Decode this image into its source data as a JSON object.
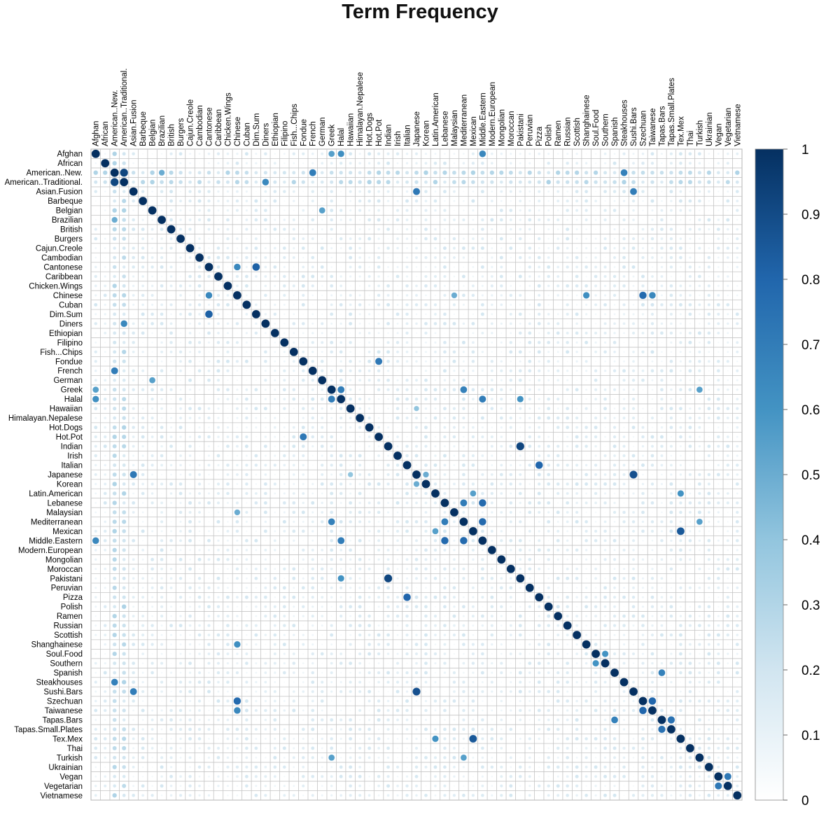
{
  "chart_data": {
    "type": "heatmap",
    "title": "Term Frequency",
    "labels": [
      "Afghan",
      "African",
      "American..New.",
      "American..Traditional.",
      "Asian.Fusion",
      "Barbeque",
      "Belgian",
      "Brazilian",
      "British",
      "Burgers",
      "Cajun.Creole",
      "Cambodian",
      "Cantonese",
      "Caribbean",
      "Chicken.Wings",
      "Chinese",
      "Cuban",
      "Dim.Sum",
      "Diners",
      "Ethiopian",
      "Filipino",
      "Fish...Chips",
      "Fondue",
      "French",
      "German",
      "Greek",
      "Halal",
      "Hawaiian",
      "Himalayan.Nepalese",
      "Hot.Dogs",
      "Hot.Pot",
      "Indian",
      "Irish",
      "Italian",
      "Japanese",
      "Korean",
      "Latin.American",
      "Lebanese",
      "Malaysian",
      "Mediterranean",
      "Mexican",
      "Middle.Eastern",
      "Modern.European",
      "Mongolian",
      "Moroccan",
      "Pakistani",
      "Peruvian",
      "Pizza",
      "Polish",
      "Ramen",
      "Russian",
      "Scottish",
      "Shanghainese",
      "Soul.Food",
      "Southern",
      "Spanish",
      "Steakhouses",
      "Sushi.Bars",
      "Szechuan",
      "Taiwanese",
      "Tapas.Bars",
      "Tapas.Small.Plates",
      "Tex.Mex",
      "Thai",
      "Turkish",
      "Ukrainian",
      "Vegan",
      "Vegetarian",
      "Vietnamese"
    ],
    "colorbar": {
      "range": [
        0,
        1
      ],
      "ticks": [
        "0",
        "0.1",
        "0.2",
        "0.3",
        "0.4",
        "0.5",
        "0.6",
        "0.7",
        "0.8",
        "0.9",
        "1"
      ],
      "colors": [
        "#ffffff",
        "#d1e5f0",
        "#92c5de",
        "#4393c3",
        "#2166ac",
        "#053061"
      ]
    },
    "high_pairs": [
      [
        "American..New.",
        "American..Traditional.",
        0.92
      ],
      [
        "Chinese",
        "Szechuan",
        0.78
      ],
      [
        "Japanese",
        "Sushi.Bars",
        0.88
      ],
      [
        "Indian",
        "Pakistani",
        0.92
      ],
      [
        "Cantonese",
        "Dim.Sum",
        0.82
      ],
      [
        "Cantonese",
        "Chinese",
        0.65
      ],
      [
        "Chinese",
        "Taiwanese",
        0.65
      ],
      [
        "Lebanese",
        "Middle.Eastern",
        0.78
      ],
      [
        "Mediterranean",
        "Middle.Eastern",
        0.78
      ],
      [
        "Greek",
        "Halal",
        0.7
      ],
      [
        "Halal",
        "Middle.Eastern",
        0.7
      ],
      [
        "Greek",
        "Mediterranean",
        0.68
      ],
      [
        "Lebanese",
        "Mediterranean",
        0.7
      ],
      [
        "Mexican",
        "Tex.Mex",
        0.85
      ],
      [
        "Tapas.Bars",
        "Tapas.Small.Plates",
        0.75
      ],
      [
        "Spanish",
        "Tapas.Bars",
        0.68
      ],
      [
        "Vegan",
        "Vegetarian",
        0.72
      ],
      [
        "Fondue",
        "Hot.Pot",
        0.72
      ],
      [
        "Italian",
        "Pizza",
        0.8
      ],
      [
        "Asian.Fusion",
        "Japanese",
        0.72
      ],
      [
        "Asian.Fusion",
        "Sushi.Bars",
        0.7
      ],
      [
        "Szechuan",
        "Taiwanese",
        0.8
      ],
      [
        "Afghan",
        "Middle.Eastern",
        0.65
      ],
      [
        "Afghan",
        "Halal",
        0.62
      ],
      [
        "Afghan",
        "Greek",
        0.55
      ],
      [
        "American..New.",
        "French",
        0.7
      ],
      [
        "American..New.",
        "Steakhouses",
        0.68
      ],
      [
        "American..Traditional.",
        "Diners",
        0.65
      ],
      [
        "Southern",
        "Soul.Food",
        0.6
      ],
      [
        "Chinese",
        "Shanghainese",
        0.62
      ],
      [
        "Malaysian",
        "Chinese",
        0.5
      ],
      [
        "Latin.American",
        "Tex.Mex",
        0.6
      ],
      [
        "Latin.American",
        "Mexican",
        0.55
      ],
      [
        "Turkish",
        "Mediterranean",
        0.55
      ],
      [
        "Turkish",
        "Greek",
        0.55
      ],
      [
        "Belgian",
        "German",
        0.55
      ],
      [
        "Halal",
        "Pakistani",
        0.6
      ],
      [
        "Hawaiian",
        "Japanese",
        0.4
      ],
      [
        "Brazilian",
        "American..New.",
        0.5
      ],
      [
        "Korean",
        "Japanese",
        0.5
      ]
    ]
  }
}
